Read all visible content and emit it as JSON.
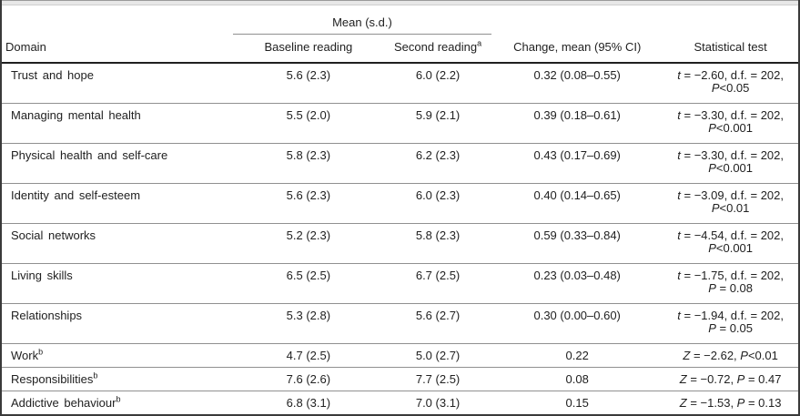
{
  "colors": {
    "outer_border": "#3a3a3a",
    "header_rule": "#1f1f1f",
    "row_rule": "#909090",
    "spanner_rule": "#8f8f8f",
    "caption_strip_bg": "#e8e8e8",
    "text": "#212121"
  },
  "table": {
    "spanner_label": "Mean (s.d.)",
    "columns": {
      "domain": "Domain",
      "baseline": "Baseline reading",
      "second": {
        "label": "Second reading",
        "sup": "a"
      },
      "change": "Change, mean (95% CI)",
      "stat": "Statistical test"
    },
    "rows": [
      {
        "domain": "Trust and hope",
        "sup": "",
        "baseline": "5.6 (2.3)",
        "second": "6.0 (2.2)",
        "change": "0.32 (0.08–0.55)",
        "stat": [
          [
            [
              "i",
              "t"
            ],
            [
              "r",
              " = −2.60, d.f. = 202,"
            ]
          ],
          [
            [
              "i",
              "P"
            ],
            [
              "r",
              "<0.05"
            ]
          ]
        ]
      },
      {
        "domain": "Managing mental health",
        "sup": "",
        "baseline": "5.5 (2.0)",
        "second": "5.9 (2.1)",
        "change": "0.39 (0.18–0.61)",
        "stat": [
          [
            [
              "i",
              "t"
            ],
            [
              "r",
              " = −3.30, d.f. = 202,"
            ]
          ],
          [
            [
              "i",
              "P"
            ],
            [
              "r",
              "<0.001"
            ]
          ]
        ]
      },
      {
        "domain": "Physical health and self-care",
        "sup": "",
        "baseline": "5.8 (2.3)",
        "second": "6.2 (2.3)",
        "change": "0.43 (0.17–0.69)",
        "stat": [
          [
            [
              "i",
              "t"
            ],
            [
              "r",
              " = −3.30, d.f. = 202,"
            ]
          ],
          [
            [
              "i",
              "P"
            ],
            [
              "r",
              "<0.001"
            ]
          ]
        ]
      },
      {
        "domain": "Identity and self-esteem",
        "sup": "",
        "baseline": "5.6 (2.3)",
        "second": "6.0 (2.3)",
        "change": "0.40 (0.14–0.65)",
        "stat": [
          [
            [
              "i",
              "t"
            ],
            [
              "r",
              " = −3.09, d.f. = 202,"
            ]
          ],
          [
            [
              "i",
              "P"
            ],
            [
              "r",
              "<0.01"
            ]
          ]
        ]
      },
      {
        "domain": "Social networks",
        "sup": "",
        "baseline": "5.2 (2.3)",
        "second": "5.8 (2.3)",
        "change": "0.59 (0.33–0.84)",
        "stat": [
          [
            [
              "i",
              "t"
            ],
            [
              "r",
              " = −4.54, d.f. = 202,"
            ]
          ],
          [
            [
              "i",
              "P"
            ],
            [
              "r",
              "<0.001"
            ]
          ]
        ]
      },
      {
        "domain": "Living skills",
        "sup": "",
        "baseline": "6.5 (2.5)",
        "second": "6.7 (2.5)",
        "change": "0.23 (0.03–0.48)",
        "stat": [
          [
            [
              "i",
              "t"
            ],
            [
              "r",
              " = −1.75, d.f. = 202,"
            ]
          ],
          [
            [
              "i",
              "P"
            ],
            [
              "r",
              " = 0.08"
            ]
          ]
        ]
      },
      {
        "domain": "Relationships",
        "sup": "",
        "baseline": "5.3 (2.8)",
        "second": "5.6 (2.7)",
        "change": "0.30 (0.00–0.60)",
        "stat": [
          [
            [
              "i",
              "t"
            ],
            [
              "r",
              " = −1.94, d.f. = 202,"
            ]
          ],
          [
            [
              "i",
              "P"
            ],
            [
              "r",
              " = 0.05"
            ]
          ]
        ]
      },
      {
        "domain": "Work",
        "sup": "b",
        "baseline": "4.7 (2.5)",
        "second": "5.0 (2.7)",
        "change": "0.22",
        "stat": [
          [
            [
              "i",
              "Z"
            ],
            [
              "r",
              " = −2.62, "
            ],
            [
              "i",
              "P"
            ],
            [
              "r",
              "<0.01"
            ]
          ]
        ]
      },
      {
        "domain": "Responsibilities",
        "sup": "b",
        "baseline": "7.6 (2.6)",
        "second": "7.7 (2.5)",
        "change": "0.08",
        "stat": [
          [
            [
              "i",
              "Z"
            ],
            [
              "r",
              " = −0.72, "
            ],
            [
              "i",
              "P"
            ],
            [
              "r",
              " = 0.47"
            ]
          ]
        ]
      },
      {
        "domain": "Addictive behaviour",
        "sup": "b",
        "baseline": "6.8 (3.1)",
        "second": "7.0 (3.1)",
        "change": "0.15",
        "stat": [
          [
            [
              "i",
              "Z"
            ],
            [
              "r",
              " = −1.53, "
            ],
            [
              "i",
              "P"
            ],
            [
              "r",
              " = 0.13"
            ]
          ]
        ]
      }
    ]
  }
}
